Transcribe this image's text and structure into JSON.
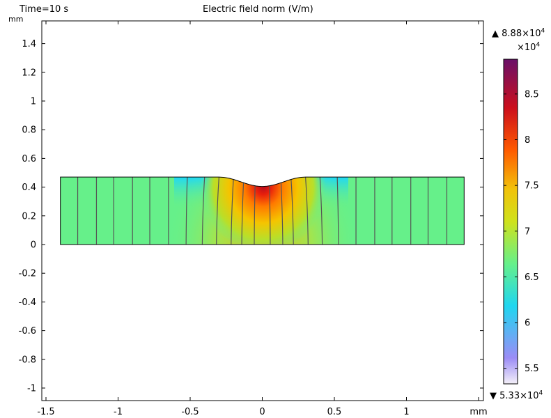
{
  "header": {
    "time_label": "Time=10 s",
    "plot_title": "Electric field norm (V/m)"
  },
  "axes": {
    "y_unit": "mm",
    "x_unit": "mm"
  },
  "colorbar": {
    "max_base": "8.88×10",
    "max_exp": "4",
    "multiplier_base": "×10",
    "multiplier_exp": "4",
    "min_base": "5.33×10",
    "min_exp": "4",
    "up_triangle": "▲",
    "down_triangle": "▼",
    "ticks": [
      "8.5",
      "8",
      "7.5",
      "7",
      "6.5",
      "6",
      "5.5"
    ],
    "tick_values": [
      8.5,
      8.0,
      7.5,
      7.0,
      6.5,
      6.0,
      5.5
    ],
    "range": [
      5.33,
      8.88
    ],
    "colormap": "rainbow",
    "colors": [
      "#f4f0f8",
      "#9b8cf6",
      "#1fd6f0",
      "#9be04a",
      "#f2c20a",
      "#ff5a00",
      "#cc0f1c",
      "#6a0f68"
    ]
  },
  "chart_data": {
    "type": "heatmap",
    "title": "Electric field norm (V/m)",
    "xlabel": "mm",
    "ylabel": "mm",
    "xlim": [
      -1.55,
      1.55
    ],
    "ylim": [
      -1.1,
      1.55
    ],
    "x_ticks": [
      -1.5,
      -1,
      -0.5,
      0,
      0.5,
      1,
      1.5
    ],
    "x_tick_labels": [
      "-1.5",
      "-1",
      "-0.5",
      "0",
      "0.5",
      "1",
      "mm"
    ],
    "y_ticks": [
      -1,
      -0.8,
      -0.6,
      -0.4,
      -0.2,
      0,
      0.2,
      0.4,
      0.6,
      0.8,
      1,
      1.2,
      1.4
    ],
    "y_tick_labels": [
      "-1",
      "-0.8",
      "-0.6",
      "-0.4",
      "-0.2",
      "0",
      "0.2",
      "0.4",
      "0.6",
      "0.8",
      "1",
      "1.2",
      "1.4"
    ],
    "domain": {
      "x_range": [
        -1.4,
        1.4
      ],
      "y_bottom": 0,
      "top_edge_y": 0.47,
      "dimple_center_y": 0.405,
      "dimple_half_width": 0.3
    },
    "field_range": [
      53300,
      88800
    ],
    "streamline_x": [
      -1.28,
      -1.15,
      -1.03,
      -0.9,
      -0.78,
      -0.65,
      -0.52,
      -0.4,
      -0.3,
      -0.2,
      -0.13,
      -0.05,
      0.05,
      0.13,
      0.2,
      0.3,
      0.4,
      0.52,
      0.65,
      0.78,
      0.9,
      1.03,
      1.15,
      1.28
    ]
  }
}
